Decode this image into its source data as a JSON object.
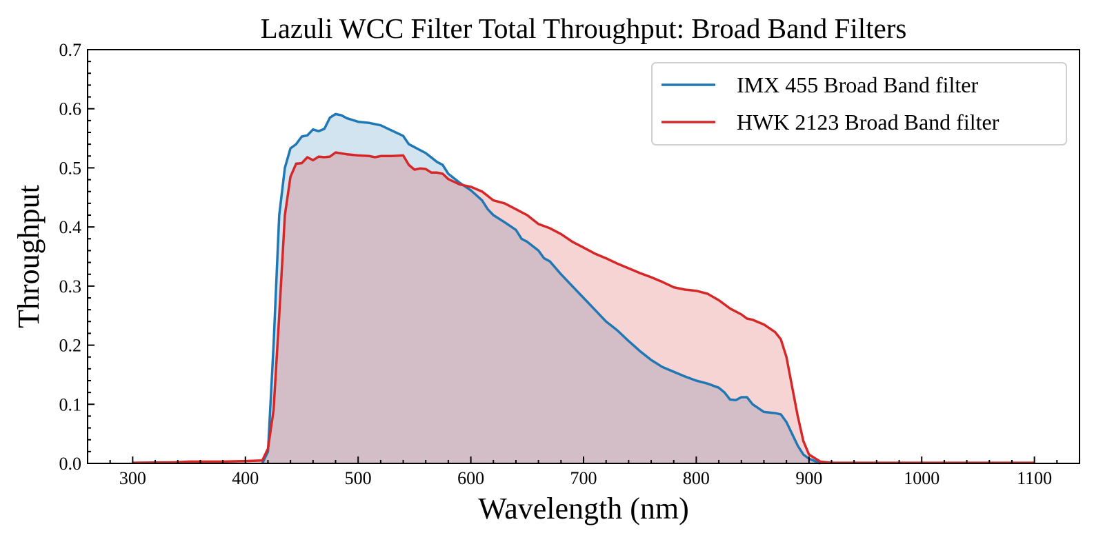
{
  "chart_data": {
    "type": "area",
    "title": "Lazuli WCC Filter Total Throughput: Broad Band Filters",
    "xlabel": "Wavelength (nm)",
    "ylabel": "Throughput",
    "xlim": [
      260,
      1140
    ],
    "ylim": [
      0,
      0.7
    ],
    "xticks": [
      300,
      400,
      500,
      600,
      700,
      800,
      900,
      1000,
      1100
    ],
    "xtick_labels": [
      "300",
      "400",
      "500",
      "600",
      "700",
      "800",
      "900",
      "1000",
      "1100"
    ],
    "yticks": [
      0.0,
      0.1,
      0.2,
      0.3,
      0.4,
      0.5,
      0.6,
      0.7
    ],
    "ytick_labels": [
      "0.0",
      "0.1",
      "0.2",
      "0.3",
      "0.4",
      "0.5",
      "0.6",
      "0.7"
    ],
    "grid": false,
    "legend_position": "top-right",
    "series": [
      {
        "name": "IMX 455 Broad Band filter",
        "color": "#1f77b4",
        "fill_alpha": 0.2,
        "points": [
          [
            415,
            0.0
          ],
          [
            420,
            0.02
          ],
          [
            425,
            0.2
          ],
          [
            430,
            0.42
          ],
          [
            435,
            0.5
          ],
          [
            440,
            0.533
          ],
          [
            445,
            0.54
          ],
          [
            450,
            0.553
          ],
          [
            455,
            0.555
          ],
          [
            460,
            0.565
          ],
          [
            465,
            0.562
          ],
          [
            470,
            0.566
          ],
          [
            475,
            0.585
          ],
          [
            480,
            0.591
          ],
          [
            485,
            0.589
          ],
          [
            490,
            0.584
          ],
          [
            500,
            0.578
          ],
          [
            510,
            0.576
          ],
          [
            520,
            0.572
          ],
          [
            530,
            0.563
          ],
          [
            540,
            0.554
          ],
          [
            545,
            0.54
          ],
          [
            550,
            0.535
          ],
          [
            560,
            0.525
          ],
          [
            570,
            0.51
          ],
          [
            575,
            0.505
          ],
          [
            580,
            0.49
          ],
          [
            590,
            0.475
          ],
          [
            600,
            0.462
          ],
          [
            610,
            0.445
          ],
          [
            615,
            0.43
          ],
          [
            620,
            0.42
          ],
          [
            630,
            0.408
          ],
          [
            640,
            0.395
          ],
          [
            645,
            0.38
          ],
          [
            650,
            0.375
          ],
          [
            660,
            0.36
          ],
          [
            665,
            0.347
          ],
          [
            670,
            0.342
          ],
          [
            680,
            0.32
          ],
          [
            690,
            0.3
          ],
          [
            700,
            0.28
          ],
          [
            710,
            0.26
          ],
          [
            720,
            0.24
          ],
          [
            730,
            0.225
          ],
          [
            740,
            0.207
          ],
          [
            750,
            0.19
          ],
          [
            760,
            0.175
          ],
          [
            770,
            0.163
          ],
          [
            780,
            0.155
          ],
          [
            790,
            0.147
          ],
          [
            800,
            0.14
          ],
          [
            810,
            0.135
          ],
          [
            820,
            0.128
          ],
          [
            825,
            0.12
          ],
          [
            830,
            0.108
          ],
          [
            835,
            0.107
          ],
          [
            840,
            0.112
          ],
          [
            845,
            0.112
          ],
          [
            850,
            0.1
          ],
          [
            860,
            0.087
          ],
          [
            870,
            0.085
          ],
          [
            875,
            0.083
          ],
          [
            880,
            0.07
          ],
          [
            885,
            0.05
          ],
          [
            890,
            0.03
          ],
          [
            895,
            0.015
          ],
          [
            900,
            0.008
          ],
          [
            910,
            0.0
          ]
        ]
      },
      {
        "name": "HWK 2123 Broad Band filter",
        "color": "#d62728",
        "fill_alpha": 0.2,
        "points": [
          [
            300,
            0.001
          ],
          [
            340,
            0.002
          ],
          [
            350,
            0.003
          ],
          [
            380,
            0.003
          ],
          [
            400,
            0.004
          ],
          [
            415,
            0.005
          ],
          [
            420,
            0.025
          ],
          [
            425,
            0.09
          ],
          [
            430,
            0.25
          ],
          [
            435,
            0.42
          ],
          [
            440,
            0.485
          ],
          [
            445,
            0.507
          ],
          [
            450,
            0.508
          ],
          [
            455,
            0.518
          ],
          [
            460,
            0.513
          ],
          [
            465,
            0.519
          ],
          [
            470,
            0.518
          ],
          [
            475,
            0.519
          ],
          [
            480,
            0.526
          ],
          [
            490,
            0.523
          ],
          [
            500,
            0.521
          ],
          [
            510,
            0.52
          ],
          [
            515,
            0.518
          ],
          [
            520,
            0.52
          ],
          [
            530,
            0.52
          ],
          [
            540,
            0.521
          ],
          [
            545,
            0.505
          ],
          [
            550,
            0.497
          ],
          [
            555,
            0.499
          ],
          [
            560,
            0.498
          ],
          [
            565,
            0.492
          ],
          [
            570,
            0.492
          ],
          [
            575,
            0.49
          ],
          [
            580,
            0.481
          ],
          [
            590,
            0.472
          ],
          [
            600,
            0.468
          ],
          [
            610,
            0.46
          ],
          [
            620,
            0.445
          ],
          [
            630,
            0.44
          ],
          [
            640,
            0.43
          ],
          [
            650,
            0.42
          ],
          [
            660,
            0.405
          ],
          [
            670,
            0.398
          ],
          [
            680,
            0.388
          ],
          [
            690,
            0.375
          ],
          [
            700,
            0.365
          ],
          [
            710,
            0.355
          ],
          [
            720,
            0.347
          ],
          [
            730,
            0.338
          ],
          [
            740,
            0.33
          ],
          [
            750,
            0.322
          ],
          [
            760,
            0.315
          ],
          [
            770,
            0.307
          ],
          [
            780,
            0.298
          ],
          [
            790,
            0.294
          ],
          [
            800,
            0.292
          ],
          [
            810,
            0.287
          ],
          [
            820,
            0.276
          ],
          [
            830,
            0.262
          ],
          [
            840,
            0.252
          ],
          [
            845,
            0.245
          ],
          [
            850,
            0.243
          ],
          [
            860,
            0.235
          ],
          [
            870,
            0.222
          ],
          [
            875,
            0.21
          ],
          [
            880,
            0.18
          ],
          [
            885,
            0.13
          ],
          [
            890,
            0.08
          ],
          [
            895,
            0.038
          ],
          [
            900,
            0.015
          ],
          [
            910,
            0.003
          ],
          [
            920,
            0.001
          ],
          [
            1100,
            0.001
          ]
        ]
      }
    ]
  }
}
